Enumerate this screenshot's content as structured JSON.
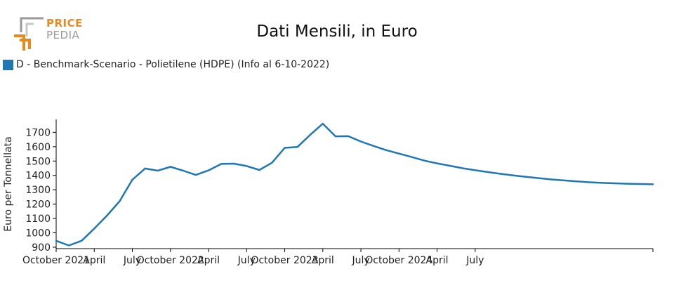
{
  "header": {
    "logo_top": "PRICE",
    "logo_bottom": "PEDIA",
    "title": "Dati Mensili, in Euro"
  },
  "chart_data": {
    "type": "line",
    "title": "Dati Mensili, in Euro",
    "xlabel": "",
    "ylabel": "Euro per Tonnellata",
    "ylim": [
      890,
      1790
    ],
    "yticks": [
      900,
      1000,
      1100,
      1200,
      1300,
      1400,
      1500,
      1600,
      1700
    ],
    "xlim": [
      "2021-10",
      "2025-09"
    ],
    "xticks": [
      {
        "date": "2021-10",
        "label": "October 2021"
      },
      {
        "date": "2022-01",
        "label": "April"
      },
      {
        "date": "2022-04",
        "label": "July"
      },
      {
        "date": "2022-07",
        "label": "October 2022"
      },
      {
        "date": "2022-10",
        "label": "April"
      },
      {
        "date": "2023-01",
        "label": "July"
      },
      {
        "date": "2023-04",
        "label": "October 2023"
      },
      {
        "date": "2023-07",
        "label": "April"
      },
      {
        "date": "2023-10",
        "label": "July"
      },
      {
        "date": "2024-01",
        "label": "October 2024"
      },
      {
        "date": "2024-04",
        "label": "April"
      },
      {
        "date": "2024-07",
        "label": "July"
      }
    ],
    "legend_position": "top-left",
    "grid": false,
    "series": [
      {
        "name": "D - Benchmark-Scenario - Polietilene (HDPE) (Info al 6-10-2022)",
        "color": "#1f77b4",
        "x": [
          "2021-10",
          "2021-11",
          "2021-12",
          "2022-01",
          "2022-02",
          "2022-03",
          "2022-04",
          "2022-05",
          "2022-06",
          "2022-07",
          "2022-08",
          "2022-09",
          "2022-10",
          "2022-11",
          "2022-12",
          "2023-01",
          "2023-02",
          "2023-03",
          "2023-04",
          "2023-05",
          "2023-06",
          "2023-07",
          "2023-08",
          "2023-09",
          "2023-10",
          "2023-11",
          "2023-12",
          "2024-01",
          "2024-02",
          "2024-03",
          "2024-04",
          "2024-05",
          "2024-06",
          "2024-07",
          "2024-08",
          "2024-09",
          "2024-10",
          "2024-11",
          "2024-12",
          "2025-01",
          "2025-02",
          "2025-03",
          "2025-04",
          "2025-05",
          "2025-06",
          "2025-07",
          "2025-08",
          "2025-09"
        ],
        "values": [
          945,
          912,
          945,
          1030,
          1120,
          1220,
          1370,
          1448,
          1433,
          1460,
          1433,
          1403,
          1435,
          1480,
          1482,
          1465,
          1438,
          1488,
          1592,
          1598,
          1682,
          1760,
          1672,
          1673,
          1636,
          1605,
          1576,
          1552,
          1528,
          1503,
          1484,
          1467,
          1450,
          1436,
          1423,
          1411,
          1400,
          1390,
          1381,
          1372,
          1365,
          1358,
          1352,
          1348,
          1345,
          1342,
          1340,
          1338
        ]
      }
    ]
  }
}
